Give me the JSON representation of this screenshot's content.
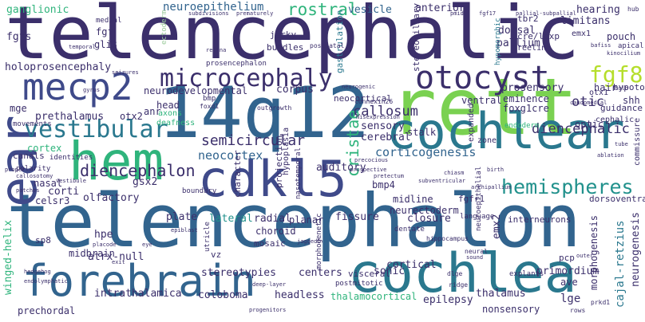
{
  "colors": {
    "background": "#ffffff",
    "navy": "#3b2f6b",
    "indigo": "#3f4a8a",
    "slate": "#32648e",
    "teal": "#2a788e",
    "sea": "#21918c",
    "green": "#2fb47c",
    "lime": "#7ad151",
    "chartreuse": "#b5de2b",
    "purple": "#482576",
    "faded": "#9ccc9c"
  },
  "words": {
    "telencephalic": "telencephalic",
    "telencephalon": "telencephalon",
    "q14q12": "14q12",
    "rett": "rett",
    "cochlear": "cochlear",
    "cochlea": "cochlea",
    "cdkl5": "cdkl5",
    "forebrain": "forebrain",
    "hem": "hem",
    "mecp2": "mecp2",
    "ear": "ear",
    "otocyst": "otocyst",
    "microcephaly": "microcephaly",
    "vestibular": "vestibular",
    "hemispheres": "hemispheres",
    "fgf8": "fgf8",
    "diencephalon": "diencephalon",
    "diencephalic": "diencephalic",
    "callosum": "callosum",
    "cristae": "cristae",
    "rostral": "rostral",
    "neuroepithelium": "neuroepithelium",
    "semicircular": "semicircular",
    "corticogenesis": "corticogenesis",
    "neocortex": "neocortex",
    "otic": "otic",
    "ganglionic": "ganglionic",
    "vesicle": "vesicle",
    "anterior": "anterior",
    "hearing": "hearing",
    "limitans": "limitans",
    "fgfs": "fgfs",
    "fgf": "fgf",
    "gli3": "gli3",
    "holoprosencephaly": "holoprosencephaly",
    "neurodevelopmental": "neurodevelopmental",
    "prosensory": "prosensory",
    "eminence": "eminence",
    "foxg1cre": "foxg1cre",
    "dorsal": "dorsal",
    "pallium": "pallium",
    "pouch": "pouch",
    "tbr2": "tbr2",
    "emx1": "emx1",
    "cre_loxp": "cre/loxp",
    "reelin": "reelin",
    "hypomorphic": "hypomorphic",
    "hypotonia": "hypotonia",
    "hair": "hair",
    "otx1": "otx1",
    "shh": "shh",
    "guidance": "guidance",
    "cephalic": "cephalic",
    "commissure": "commissure",
    "ventral": "ventral",
    "sensory": "sensory",
    "cerebral": "cerebral",
    "auditory": "auditory",
    "corpus": "corpus",
    "neocortical": "neocortical",
    "head": "head",
    "anr": "anr",
    "otx2": "otx2",
    "prethalamus": "prethalamus",
    "mge": "mge",
    "cortex": "cortex",
    "canals": "canals",
    "nasal": "nasal",
    "celsr3": "celsr3",
    "corti": "corti",
    "olfactory": "olfactory",
    "gsx2": "gsx2",
    "bmp4": "bmp4",
    "stalk": "stalk",
    "optic": "optic",
    "expanded": "expanded",
    "zone": "zone",
    "character": "character",
    "projection": "projection",
    "midline": "midline",
    "neurectoderm": "neurectoderm",
    "fgfr1": "fgfr1",
    "dorsoventral": "dorsoventral",
    "emx2": "emx2",
    "lateral": "lateral",
    "plate": "plate",
    "radial": "radial",
    "planar": "planar",
    "fissure": "fissure",
    "closure": "closure",
    "hpe": "hpe",
    "choroid": "choroid",
    "mosaic": "mosaic",
    "vz": "vz",
    "interneurons": "interneurons",
    "winged_helix": "winged-helix",
    "midbrain": "midbrain",
    "atrx_null": "atrx-null",
    "stereotypies": "stereotypies",
    "centers": "centers",
    "sonic": "sonic",
    "cortical": "cortical",
    "visceral": "visceral",
    "primordium": "primordium",
    "ave": "ave",
    "lge": "lge",
    "cajal_retzius": "cajal-retzius",
    "morphogenesis": "morphogenesis",
    "neurogenesis": "neurogenesis",
    "pcp": "pcp",
    "sp8": "sp8",
    "prechordal": "prechordal",
    "intrathalamica": "intrathalamica",
    "coloboma": "coloboma",
    "headless": "headless",
    "thalamocortical": "thalamocortical",
    "epilepsy": "epilepsy",
    "thalamus": "thalamus",
    "nonsensory": "nonsensory",
    "ectoderm": "ectoderm",
    "subdivisions": "subdivisions",
    "prematurely": "prematurely",
    "medial": "medial",
    "gastrulation": "gastrulation",
    "jerky": "jerky",
    "bundles": "bundles",
    "postnatal": "postnatal",
    "stereociliary": "stereociliary",
    "prosencephalon": "prosencephalon",
    "outgrowth": "outgrowth",
    "foxd1": "foxd1",
    "bmp": "bmp",
    "connexin26": "connexin26",
    "misexpression": "misexpression",
    "endoderm": "endoderm",
    "axons": "axons",
    "deafness": "deafness",
    "movements": "movements",
    "identities": "identities",
    "boundary": "boundary",
    "hypoplasia": "hypoplasia",
    "nasotemporal": "nasotemporal",
    "dentate": "dentate",
    "language": "language",
    "hippocampus": "hippocampus",
    "neural": "neural",
    "explants": "explants",
    "postmitotic": "postmitotic",
    "dlge": "dlge",
    "ridge": "ridge",
    "prkd1": "prkd1",
    "rows": "rows",
    "epiblast": "epiblast",
    "morphogenetic": "morphogenetic",
    "birth": "birth",
    "chiasm": "chiasm",
    "precocious": "precocious",
    "tube": "tube",
    "ablation": "ablation",
    "apical": "apical",
    "kinocilium": "kinocilium",
    "pallial_subpallial": "pallial-subpallial",
    "bafiss": "bafiss",
    "subventricular": "subventricular",
    "pretectum": "pretectum",
    "prospective": "prospective",
    "archipallium": "archipallium",
    "caudomedial": "caudomedial",
    "outer": "outer",
    "utricle": "utricle",
    "neurogenic": "neurogenic",
    "neuroepithelial": "neuroepithelial",
    "seizures": "seizures",
    "temporal": "temporal",
    "retina": "retina",
    "gyrus": "gyrus",
    "proper": "proper",
    "polarity": "polarity",
    "patches": "patches",
    "callosotomy": "callosotomy",
    "vestibule": "vestibule",
    "placode": "placode",
    "eye": "eye",
    "hedgehog": "hedgehog",
    "endolymphatic": "endolymphatic",
    "jagged1": "jagged1",
    "deep_layer": "deep-layer",
    "progenitors": "progenitors",
    "exit": "exit",
    "hub": "hub",
    "neurogenesis2": "neurogenesis",
    "sound": "sound",
    "bulb": "bulb",
    "forebrain2": "forebrain",
    "disorders": "disorders",
    "nestin": "nestin",
    "fgf17": "fgf17",
    "embryos": "embryos",
    "medial2": "medial",
    "pmid": "pmid"
  }
}
